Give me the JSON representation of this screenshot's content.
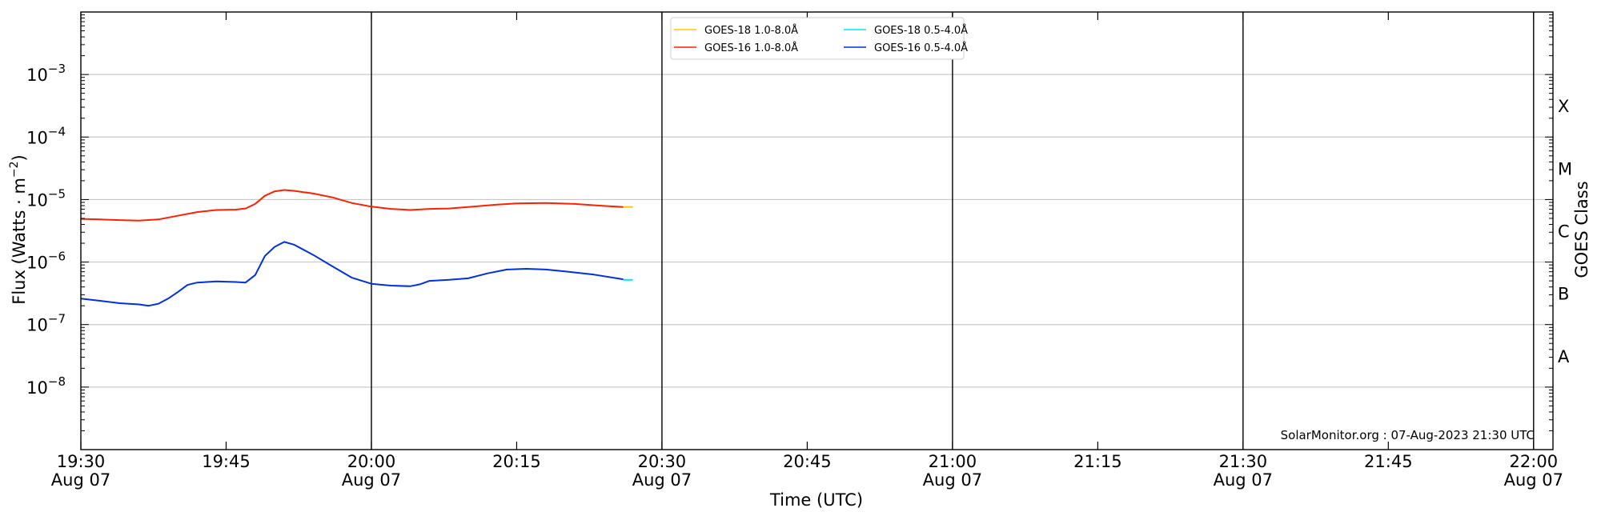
{
  "chart_data": {
    "type": "line",
    "xlabel": "Time (UTC)",
    "ylabel_main": "Flux (Watts · m",
    "ylabel_exp": "−2",
    "ylabel_close": ")",
    "y2label": "GOES Class",
    "credit": "SolarMonitor.org : 07-Aug-2023 21:30 UTC",
    "y_scale": "log",
    "ylim": [
      1e-09,
      0.01
    ],
    "xlim": [
      "2023-08-07 19:30",
      "2023-08-07 22:02"
    ],
    "grid": "horizontal at decades",
    "legend_position": "top-center",
    "x_ticks": [
      {
        "time": "19:30",
        "line1": "19:30",
        "line2": "Aug 07",
        "major": true
      },
      {
        "time": "19:45",
        "line1": "19:45",
        "line2": "",
        "major": false
      },
      {
        "time": "20:00",
        "line1": "20:00",
        "line2": "Aug 07",
        "major": true
      },
      {
        "time": "20:15",
        "line1": "20:15",
        "line2": "",
        "major": false
      },
      {
        "time": "20:30",
        "line1": "20:30",
        "line2": "Aug 07",
        "major": true
      },
      {
        "time": "20:45",
        "line1": "20:45",
        "line2": "",
        "major": false
      },
      {
        "time": "21:00",
        "line1": "21:00",
        "line2": "Aug 07",
        "major": true
      },
      {
        "time": "21:15",
        "line1": "21:15",
        "line2": "",
        "major": false
      },
      {
        "time": "21:30",
        "line1": "21:30",
        "line2": "Aug 07",
        "major": true
      },
      {
        "time": "21:45",
        "line1": "21:45",
        "line2": "",
        "major": false
      },
      {
        "time": "22:00",
        "line1": "22:00",
        "line2": "Aug 07",
        "major": true
      }
    ],
    "y_ticks": [
      {
        "exp": -3,
        "base": "10",
        "sup": "−3"
      },
      {
        "exp": -4,
        "base": "10",
        "sup": "−4"
      },
      {
        "exp": -5,
        "base": "10",
        "sup": "−5"
      },
      {
        "exp": -6,
        "base": "10",
        "sup": "−6"
      },
      {
        "exp": -7,
        "base": "10",
        "sup": "−7"
      },
      {
        "exp": -8,
        "base": "10",
        "sup": "−8"
      }
    ],
    "goes_classes": [
      {
        "label": "X",
        "flux": 0.000316
      },
      {
        "label": "M",
        "flux": 3.16e-05
      },
      {
        "label": "C",
        "flux": 3.16e-06
      },
      {
        "label": "B",
        "flux": 3.16e-07
      },
      {
        "label": "A",
        "flux": 3.16e-08
      }
    ],
    "series": [
      {
        "name": "GOES-18 1.0-8.0Å",
        "color": "#ffc800",
        "points": [
          [
            "20:26",
            7.6e-06
          ],
          [
            "20:27",
            7.6e-06
          ]
        ]
      },
      {
        "name": "GOES-16 1.0-8.0Å",
        "color": "#ff2000",
        "points": [
          [
            "19:30",
            4.9e-06
          ],
          [
            "19:32",
            4.8e-06
          ],
          [
            "19:34",
            4.7e-06
          ],
          [
            "19:36",
            4.6e-06
          ],
          [
            "19:38",
            4.8e-06
          ],
          [
            "19:40",
            5.5e-06
          ],
          [
            "19:42",
            6.3e-06
          ],
          [
            "19:44",
            6.8e-06
          ],
          [
            "19:46",
            6.9e-06
          ],
          [
            "19:47",
            7.2e-06
          ],
          [
            "19:48",
            8.5e-06
          ],
          [
            "19:49",
            1.15e-05
          ],
          [
            "19:50",
            1.35e-05
          ],
          [
            "19:51",
            1.42e-05
          ],
          [
            "19:52",
            1.38e-05
          ],
          [
            "19:54",
            1.25e-05
          ],
          [
            "19:56",
            1.08e-05
          ],
          [
            "19:58",
            8.8e-06
          ],
          [
            "20:00",
            7.7e-06
          ],
          [
            "20:02",
            7.1e-06
          ],
          [
            "20:04",
            6.8e-06
          ],
          [
            "20:06",
            7.1e-06
          ],
          [
            "20:08",
            7.2e-06
          ],
          [
            "20:10",
            7.6e-06
          ],
          [
            "20:13",
            8.3e-06
          ],
          [
            "20:15",
            8.7e-06
          ],
          [
            "20:18",
            8.8e-06
          ],
          [
            "20:21",
            8.5e-06
          ],
          [
            "20:24",
            7.9e-06
          ],
          [
            "20:26",
            7.6e-06
          ]
        ]
      },
      {
        "name": "GOES-18 0.5-4.0Å",
        "color": "#00e5ff",
        "points": [
          [
            "20:26",
            5.2e-07
          ],
          [
            "20:27",
            5.2e-07
          ]
        ]
      },
      {
        "name": "GOES-16 0.5-4.0Å",
        "color": "#0030e0",
        "points": [
          [
            "19:30",
            2.6e-07
          ],
          [
            "19:32",
            2.4e-07
          ],
          [
            "19:34",
            2.2e-07
          ],
          [
            "19:36",
            2.1e-07
          ],
          [
            "19:37",
            2e-07
          ],
          [
            "19:38",
            2.15e-07
          ],
          [
            "19:39",
            2.6e-07
          ],
          [
            "19:40",
            3.3e-07
          ],
          [
            "19:41",
            4.3e-07
          ],
          [
            "19:42",
            4.7e-07
          ],
          [
            "19:44",
            4.9e-07
          ],
          [
            "19:46",
            4.8e-07
          ],
          [
            "19:47",
            4.7e-07
          ],
          [
            "19:48",
            6.2e-07
          ],
          [
            "19:49",
            1.25e-06
          ],
          [
            "19:50",
            1.75e-06
          ],
          [
            "19:51",
            2.1e-06
          ],
          [
            "19:52",
            1.9e-06
          ],
          [
            "19:54",
            1.3e-06
          ],
          [
            "19:56",
            8.5e-07
          ],
          [
            "19:58",
            5.6e-07
          ],
          [
            "20:00",
            4.5e-07
          ],
          [
            "20:02",
            4.2e-07
          ],
          [
            "20:04",
            4.1e-07
          ],
          [
            "20:05",
            4.4e-07
          ],
          [
            "20:06",
            5e-07
          ],
          [
            "20:08",
            5.2e-07
          ],
          [
            "20:10",
            5.5e-07
          ],
          [
            "20:12",
            6.6e-07
          ],
          [
            "20:14",
            7.6e-07
          ],
          [
            "20:16",
            7.8e-07
          ],
          [
            "20:18",
            7.6e-07
          ],
          [
            "20:20",
            7.1e-07
          ],
          [
            "20:23",
            6.3e-07
          ],
          [
            "20:26",
            5.3e-07
          ]
        ]
      }
    ],
    "legend_order": [
      0,
      2,
      1,
      3
    ]
  }
}
